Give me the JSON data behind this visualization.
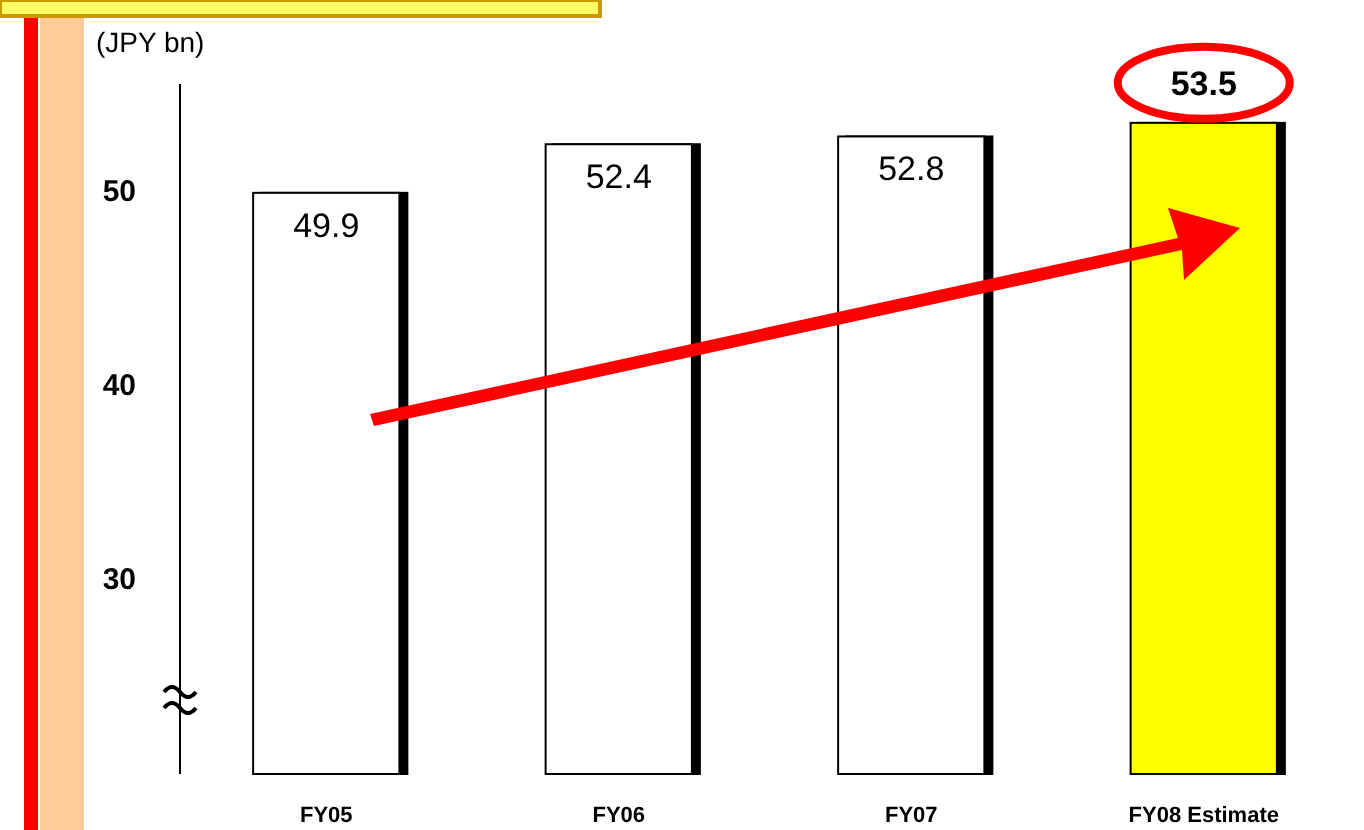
{
  "chart_data": {
    "type": "bar",
    "ylabel": "(JPY bn)",
    "categories": [
      "FY05",
      "FY06",
      "FY07",
      "FY08 Estimate"
    ],
    "values": [
      49.9,
      52.4,
      52.8,
      53.5
    ],
    "colors": [
      "#ffffff",
      "#ffffff",
      "#ffffff",
      "#ffff00"
    ],
    "ylim": [
      20,
      55.5
    ],
    "yticks": [
      30,
      40,
      50
    ],
    "data_labels": true,
    "grid": false
  }
}
